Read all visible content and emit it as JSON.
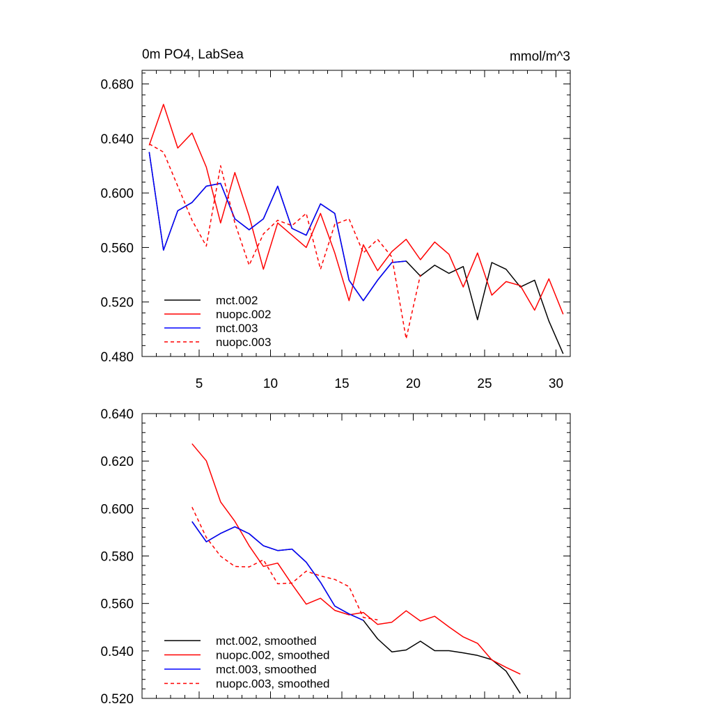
{
  "chart_data": [
    {
      "type": "line",
      "title_left": "0m PO4, LabSea",
      "title_right": "mmol/m^3",
      "xlabel": "",
      "ylabel": "",
      "xlim": [
        1,
        31
      ],
      "ylim": [
        0.48,
        0.69
      ],
      "xticks": [
        5,
        10,
        15,
        20,
        25,
        30
      ],
      "xtick_labels": [
        "5",
        "10",
        "15",
        "20",
        "25",
        "30"
      ],
      "yticks": [
        0.48,
        0.52,
        0.56,
        0.6,
        0.64,
        0.68
      ],
      "ytick_labels": [
        "0.480",
        "0.520",
        "0.560",
        "0.600",
        "0.640",
        "0.680"
      ],
      "legend_position": "bottom-left",
      "series": [
        {
          "name": "mct.002",
          "color": "#000000",
          "dash": "solid",
          "x": [
            1.5,
            2.5,
            3.5,
            4.5,
            5.5,
            6.5,
            7.5,
            8.5,
            9.5,
            10.5,
            11.5,
            12.5,
            13.5,
            14.5,
            15.5,
            16.5,
            17.5,
            18.5,
            19.5,
            20.5,
            21.5,
            22.5,
            23.5,
            24.5,
            25.5,
            26.5,
            27.5,
            28.5,
            29.5,
            30.5
          ],
          "y": [
            0.63,
            0.558,
            0.587,
            0.593,
            0.605,
            0.607,
            0.581,
            0.573,
            0.581,
            0.605,
            0.574,
            0.569,
            0.592,
            0.585,
            0.536,
            0.521,
            0.536,
            0.549,
            0.55,
            0.539,
            0.547,
            0.541,
            0.546,
            0.507,
            0.549,
            0.544,
            0.531,
            0.536,
            0.506,
            0.482
          ]
        },
        {
          "name": "nuopc.002",
          "color": "#ff0000",
          "dash": "solid",
          "x": [
            1.5,
            2.5,
            3.5,
            4.5,
            5.5,
            6.5,
            7.5,
            8.5,
            9.5,
            10.5,
            11.5,
            12.5,
            13.5,
            14.5,
            15.5,
            16.5,
            17.5,
            18.5,
            19.5,
            20.5,
            21.5,
            22.5,
            23.5,
            24.5,
            25.5,
            26.5,
            27.5,
            28.5,
            29.5,
            30.5
          ],
          "y": [
            0.635,
            0.665,
            0.633,
            0.644,
            0.619,
            0.578,
            0.615,
            0.583,
            0.544,
            0.578,
            0.569,
            0.56,
            0.585,
            0.556,
            0.521,
            0.562,
            0.543,
            0.557,
            0.566,
            0.551,
            0.564,
            0.555,
            0.531,
            0.556,
            0.525,
            0.535,
            0.532,
            0.514,
            0.537,
            0.511
          ]
        },
        {
          "name": "mct.003",
          "color": "#0000ff",
          "dash": "solid",
          "x": [
            1.5,
            2.5,
            3.5,
            4.5,
            5.5,
            6.5,
            7.5,
            8.5,
            9.5,
            10.5,
            11.5,
            12.5,
            13.5,
            14.5,
            15.5,
            16.5,
            17.5,
            18.5,
            19.5
          ],
          "y": [
            0.63,
            0.558,
            0.587,
            0.593,
            0.605,
            0.607,
            0.581,
            0.573,
            0.581,
            0.605,
            0.574,
            0.569,
            0.592,
            0.585,
            0.536,
            0.521,
            0.536,
            0.549,
            0.55
          ]
        },
        {
          "name": "nuopc.003",
          "color": "#ff0000",
          "dash": "dashed",
          "x": [
            1.5,
            2.5,
            3.5,
            4.5,
            5.5,
            6.5,
            7.5,
            8.5,
            9.5,
            10.5,
            11.5,
            12.5,
            13.5,
            14.5,
            15.5,
            16.5,
            17.5,
            18.5,
            19.5,
            20.5
          ],
          "y": [
            0.636,
            0.63,
            0.605,
            0.58,
            0.561,
            0.62,
            0.578,
            0.547,
            0.57,
            0.58,
            0.576,
            0.585,
            0.544,
            0.577,
            0.581,
            0.556,
            0.566,
            0.553,
            0.493,
            0.54
          ]
        }
      ]
    },
    {
      "type": "line",
      "title_left": "",
      "title_right": "",
      "xlabel": "",
      "ylabel": "",
      "xlim": [
        1,
        31
      ],
      "ylim": [
        0.52,
        0.64
      ],
      "xticks": [
        5,
        10,
        15,
        20,
        25,
        30
      ],
      "xtick_labels": [],
      "yticks": [
        0.52,
        0.54,
        0.56,
        0.58,
        0.6,
        0.62,
        0.64
      ],
      "ytick_labels": [
        "0.520",
        "0.540",
        "0.560",
        "0.580",
        "0.600",
        "0.620",
        "0.640"
      ],
      "legend_position": "bottom-left",
      "series": [
        {
          "name": "mct.002, smoothed",
          "color": "#000000",
          "dash": "solid",
          "x": [
            4.5,
            5.5,
            6.5,
            7.5,
            8.5,
            9.5,
            10.5,
            11.5,
            12.5,
            13.5,
            14.5,
            15.5,
            16.5,
            17.5,
            18.5,
            19.5,
            20.5,
            21.5,
            22.5,
            23.5,
            24.5,
            25.5,
            26.5,
            27.5
          ],
          "y": [
            0.5945,
            0.586,
            0.5895,
            0.5923,
            0.5894,
            0.5843,
            0.5823,
            0.5829,
            0.5774,
            0.5689,
            0.5589,
            0.5556,
            0.5529,
            0.5451,
            0.5396,
            0.5404,
            0.5441,
            0.5401,
            0.5401,
            0.5392,
            0.5381,
            0.5363,
            0.5315,
            0.5221
          ]
        },
        {
          "name": "nuopc.002, smoothed",
          "color": "#ff0000",
          "dash": "solid",
          "x": [
            4.5,
            5.5,
            6.5,
            7.5,
            8.5,
            9.5,
            10.5,
            11.5,
            12.5,
            13.5,
            14.5,
            15.5,
            16.5,
            17.5,
            18.5,
            19.5,
            20.5,
            21.5,
            22.5,
            23.5,
            24.5,
            25.5,
            26.5,
            27.5
          ],
          "y": [
            0.6273,
            0.6201,
            0.6028,
            0.5946,
            0.5843,
            0.5756,
            0.577,
            0.5681,
            0.5597,
            0.5622,
            0.5571,
            0.5552,
            0.5562,
            0.5512,
            0.5521,
            0.5569,
            0.5526,
            0.5546,
            0.5501,
            0.5459,
            0.5432,
            0.5362,
            0.5331,
            0.5302
          ]
        },
        {
          "name": "mct.003, smoothed",
          "color": "#0000ff",
          "dash": "solid",
          "x": [
            4.5,
            5.5,
            6.5,
            7.5,
            8.5,
            9.5,
            10.5,
            11.5,
            12.5,
            13.5,
            14.5,
            15.5,
            16.5
          ],
          "y": [
            0.5945,
            0.586,
            0.5895,
            0.5923,
            0.5894,
            0.5843,
            0.5823,
            0.5829,
            0.5774,
            0.5689,
            0.5589,
            0.5556,
            0.5529
          ]
        },
        {
          "name": "nuopc.003, smoothed",
          "color": "#ff0000",
          "dash": "dashed",
          "x": [
            4.5,
            5.5,
            6.5,
            7.5,
            8.5,
            9.5,
            10.5,
            11.5,
            12.5,
            13.5,
            14.5,
            15.5,
            16.5,
            17.5
          ],
          "y": [
            0.6006,
            0.5878,
            0.5799,
            0.5756,
            0.5754,
            0.5784,
            0.5683,
            0.5686,
            0.5736,
            0.5716,
            0.5701,
            0.5671,
            0.5541,
            0.5531
          ]
        }
      ]
    }
  ]
}
